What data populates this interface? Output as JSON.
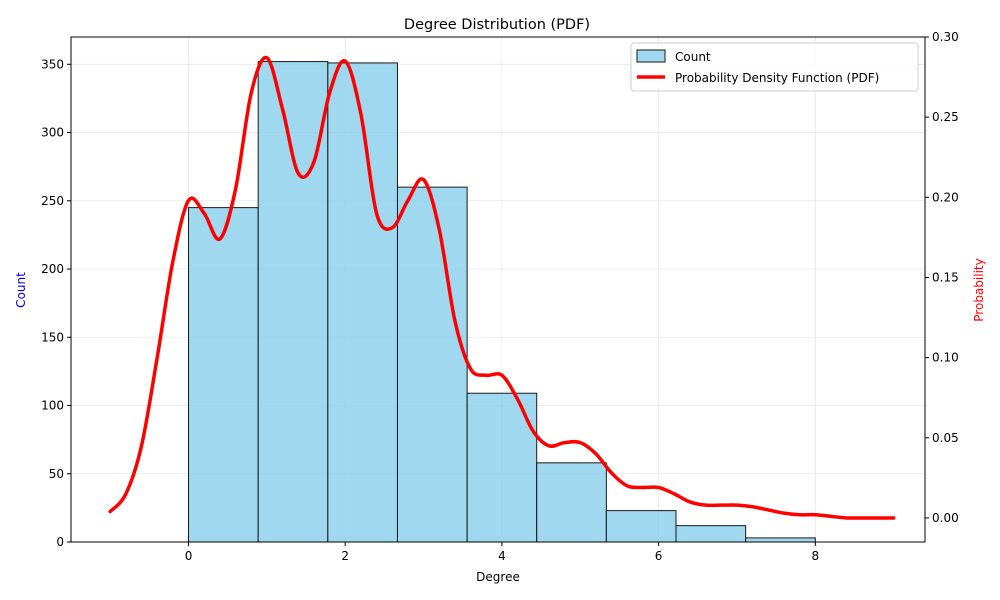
{
  "chart_data": {
    "type": "bar",
    "title": "Degree Distribution (PDF)",
    "xlabel": "Degree",
    "ylabel_left": "Count",
    "ylabel_right": "Probability",
    "xlim": [
      -1.5,
      9.4
    ],
    "ylim_left": [
      0,
      370
    ],
    "ylim_right": [
      -0.015,
      0.3
    ],
    "grid": true,
    "legend_position": "top-right",
    "xticks": [
      0,
      2,
      4,
      6,
      8
    ],
    "xtick_labels": [
      "0",
      "2",
      "4",
      "6",
      "8"
    ],
    "yticks_left": [
      0,
      50,
      100,
      150,
      200,
      250,
      300,
      350
    ],
    "ytick_labels_left": [
      "0",
      "50",
      "100",
      "150",
      "200",
      "250",
      "300",
      "350"
    ],
    "yticks_right": [
      0,
      0.05,
      0.1,
      0.15,
      0.2,
      0.25,
      0.3
    ],
    "ytick_labels_right": [
      "0.00",
      "0.05",
      "0.10",
      "0.15",
      "0.20",
      "0.25",
      "0.30"
    ],
    "series": [
      {
        "name": "Count",
        "type": "histogram",
        "bin_edges": [
          0,
          0.889,
          1.778,
          2.667,
          3.556,
          4.444,
          5.333,
          6.222,
          7.111,
          8.0
        ],
        "values": [
          245,
          352,
          351,
          260,
          109,
          58,
          23,
          12,
          3
        ],
        "color": "#87CEEB",
        "edgecolor": "#1a1a1a"
      },
      {
        "name": "Probability Density Function (PDF)",
        "type": "line",
        "color": "#ff0000",
        "x": [
          -1.0,
          -0.8,
          -0.6,
          -0.4,
          -0.2,
          0.0,
          0.2,
          0.4,
          0.6,
          0.8,
          1.0,
          1.2,
          1.4,
          1.6,
          1.8,
          2.0,
          2.2,
          2.4,
          2.6,
          2.8,
          3.0,
          3.2,
          3.4,
          3.6,
          3.8,
          4.0,
          4.2,
          4.4,
          4.6,
          4.8,
          5.0,
          5.2,
          5.4,
          5.6,
          5.8,
          6.0,
          6.2,
          6.4,
          6.6,
          6.8,
          7.0,
          7.2,
          7.4,
          7.6,
          7.8,
          8.0,
          8.2,
          8.4,
          8.6,
          8.8,
          9.0
        ],
        "y": [
          0.004,
          0.015,
          0.045,
          0.1,
          0.16,
          0.198,
          0.19,
          0.174,
          0.205,
          0.265,
          0.287,
          0.255,
          0.215,
          0.222,
          0.265,
          0.285,
          0.252,
          0.19,
          0.181,
          0.198,
          0.211,
          0.18,
          0.123,
          0.093,
          0.089,
          0.089,
          0.074,
          0.054,
          0.045,
          0.047,
          0.047,
          0.04,
          0.028,
          0.02,
          0.019,
          0.019,
          0.015,
          0.01,
          0.008,
          0.008,
          0.008,
          0.007,
          0.005,
          0.003,
          0.002,
          0.002,
          0.001,
          0.0,
          0.0,
          0.0,
          0.0
        ]
      }
    ]
  }
}
